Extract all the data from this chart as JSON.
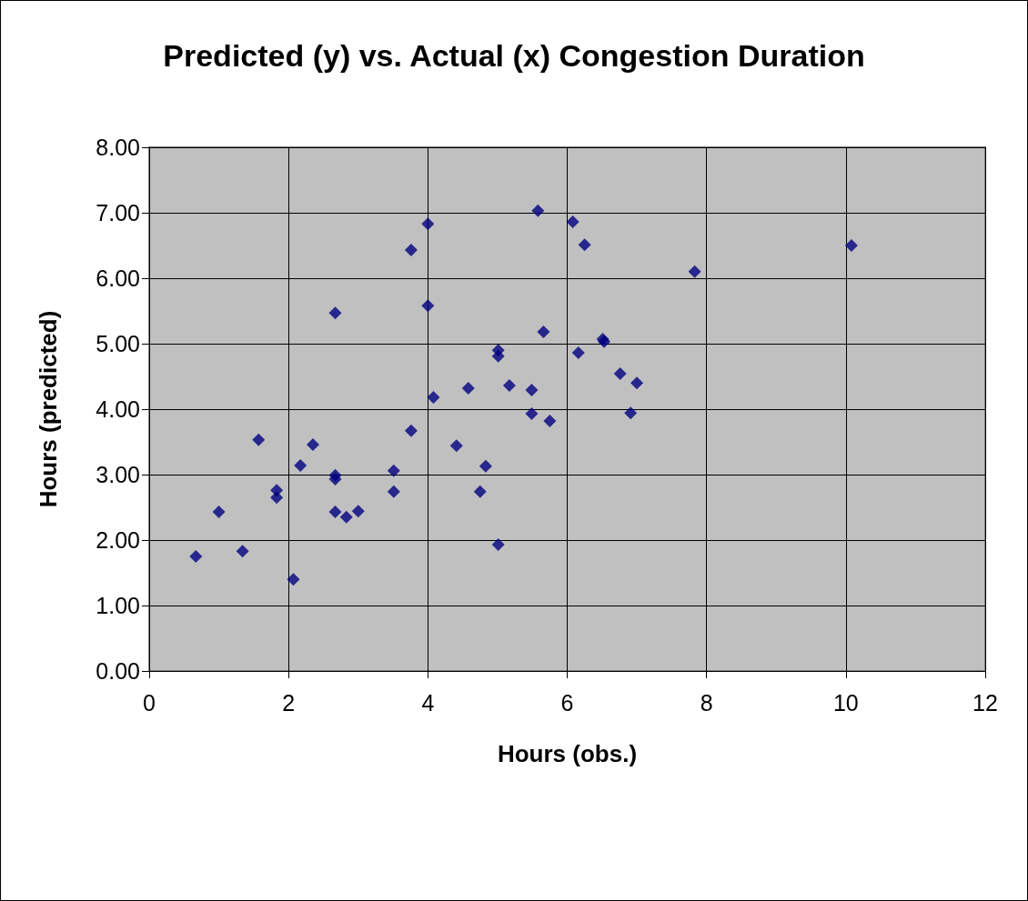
{
  "chart_data": {
    "type": "scatter",
    "title": "Predicted (y) vs. Actual (x) Congestion Duration",
    "xlabel": "Hours (obs.)",
    "ylabel": "Hours (predicted)",
    "x": [
      0.67,
      1.0,
      1.34,
      1.57,
      1.83,
      1.83,
      2.07,
      2.17,
      2.35,
      2.67,
      2.67,
      2.67,
      2.67,
      2.83,
      3.0,
      3.51,
      3.51,
      3.76,
      3.76,
      4.0,
      4.0,
      4.08,
      4.41,
      4.58,
      4.75,
      4.83,
      5.01,
      5.01,
      5.01,
      5.17,
      5.49,
      5.49,
      5.58,
      5.66,
      5.75,
      6.08,
      6.16,
      6.25,
      6.51,
      6.53,
      6.76,
      6.91,
      7.0,
      7.83,
      10.08
    ],
    "series": [
      {
        "color": "#000080",
        "values": [
          1.75,
          2.43,
          1.83,
          3.53,
          2.76,
          2.65,
          1.4,
          3.14,
          3.46,
          5.47,
          2.99,
          2.93,
          2.43,
          2.35,
          2.44,
          3.06,
          2.74,
          3.67,
          6.43,
          6.83,
          5.58,
          4.18,
          3.44,
          4.32,
          2.74,
          3.13,
          4.9,
          4.81,
          1.93,
          4.36,
          4.29,
          3.93,
          7.03,
          5.18,
          3.82,
          6.86,
          4.86,
          6.51,
          5.07,
          5.03,
          4.54,
          3.94,
          4.4,
          6.1,
          6.5
        ]
      }
    ],
    "xlim": [
      0,
      12
    ],
    "xticks": [
      0,
      2,
      4,
      6,
      8,
      10,
      12
    ],
    "ylim": [
      0,
      8
    ],
    "yticks": [
      {
        "value": 0,
        "label": "0.00"
      },
      {
        "value": 1,
        "label": "1.00"
      },
      {
        "value": 2,
        "label": "2.00"
      },
      {
        "value": 3,
        "label": "3.00"
      },
      {
        "value": 4,
        "label": "4.00"
      },
      {
        "value": 5,
        "label": "5.00"
      },
      {
        "value": 6,
        "label": "6.00"
      },
      {
        "value": 7,
        "label": "7.00"
      },
      {
        "value": 8,
        "label": "8.00"
      }
    ],
    "grid": true,
    "marker": "diamond"
  }
}
